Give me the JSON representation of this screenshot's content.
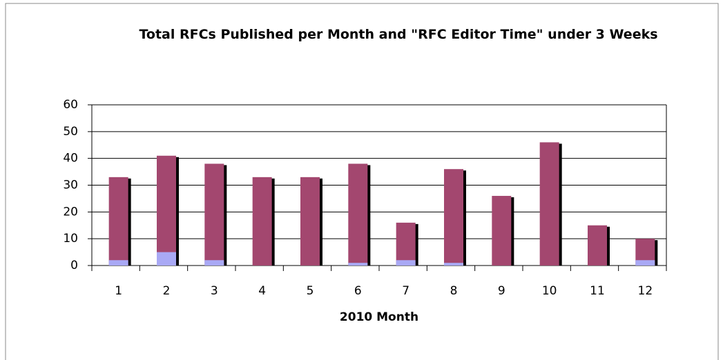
{
  "chart_data": {
    "type": "bar",
    "barmode": "overlay",
    "title": "Total RFCs Published per Month and \"RFC Editor Time\" under 3 Weeks",
    "x_label": "2010 Month",
    "categories": [
      "1",
      "2",
      "3",
      "4",
      "5",
      "6",
      "7",
      "8",
      "9",
      "10",
      "11",
      "12"
    ],
    "series": [
      {
        "color": "#a3476f",
        "values": [
          33,
          41,
          38,
          33,
          33,
          38,
          16,
          36,
          26,
          46,
          15,
          10
        ]
      },
      {
        "color": "#a9a9f5",
        "values": [
          2,
          5,
          2,
          0,
          0,
          1,
          2,
          1,
          0,
          0,
          0,
          2
        ]
      }
    ],
    "ylim": [
      0,
      60
    ],
    "yticks": [
      0,
      10,
      20,
      30,
      40,
      50,
      60
    ],
    "grid": true,
    "shadow": true
  }
}
